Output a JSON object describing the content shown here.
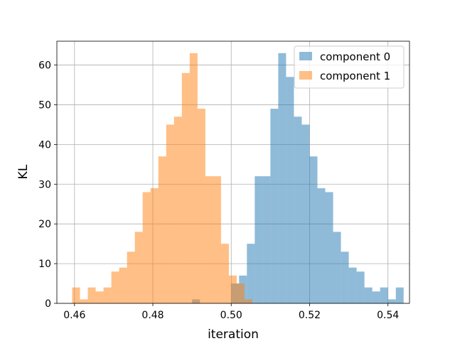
{
  "chart_data": {
    "type": "bar",
    "title": "",
    "xlabel": "iteration",
    "ylabel": "KL",
    "xlim": [
      0.4555,
      0.5455
    ],
    "ylim": [
      0,
      66
    ],
    "xticks": [
      0.46,
      0.48,
      0.5,
      0.52,
      0.54
    ],
    "xtick_labels": [
      "0.46",
      "0.48",
      "0.50",
      "0.52",
      "0.54"
    ],
    "yticks": [
      0,
      10,
      20,
      30,
      40,
      50,
      60
    ],
    "ytick_labels": [
      "0",
      "10",
      "20",
      "30",
      "40",
      "50",
      "60"
    ],
    "grid": true,
    "legend_position": "top-right",
    "bin_width": 0.002,
    "series": [
      {
        "name": "component 0",
        "color": "#1f77b4",
        "alpha": 0.5,
        "bin_start": 0.49,
        "counts": [
          1,
          0,
          0,
          0,
          0,
          5,
          7,
          15,
          32,
          32,
          49,
          63,
          57,
          47,
          45,
          37,
          29,
          28,
          18,
          13,
          9,
          8,
          4,
          3,
          4,
          1,
          4
        ]
      },
      {
        "name": "component 1",
        "color": "#ff7f0e",
        "alpha": 0.5,
        "bin_start": 0.4594,
        "counts": [
          4,
          1,
          4,
          3,
          4,
          8,
          9,
          13,
          18,
          28,
          29,
          37,
          45,
          47,
          58,
          63,
          49,
          32,
          32,
          15,
          7,
          5,
          1
        ]
      }
    ]
  }
}
